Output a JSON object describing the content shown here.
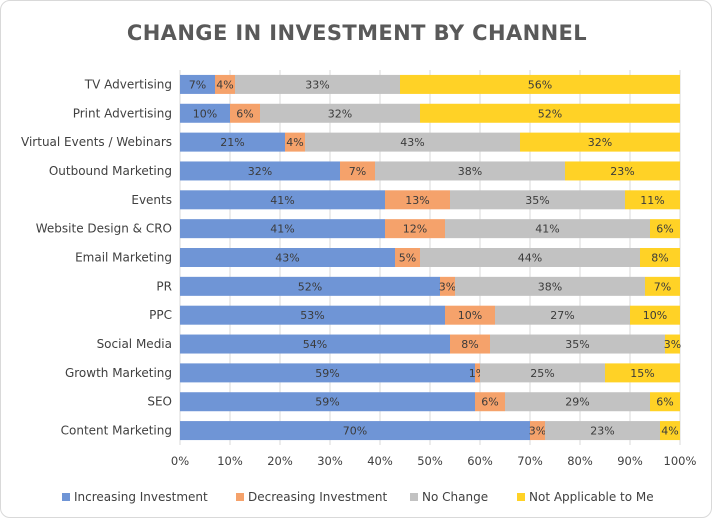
{
  "chart_data": {
    "type": "bar",
    "orientation": "horizontal",
    "stacked": true,
    "title": "CHANGE IN INVESTMENT BY CHANNEL",
    "categories": [
      "TV Advertising",
      "Print Advertising",
      "Virtual Events / Webinars",
      "Outbound Marketing",
      "Events",
      "Website Design & CRO",
      "Email Marketing",
      "PR",
      "PPC",
      "Social Media",
      "Growth Marketing",
      "SEO",
      "Content Marketing"
    ],
    "series": [
      {
        "name": "Increasing Investment",
        "color": "#6f95d6",
        "values": [
          7,
          10,
          21,
          32,
          41,
          41,
          43,
          52,
          53,
          54,
          59,
          59,
          70
        ]
      },
      {
        "name": "Decreasing Investment",
        "color": "#f5a26b",
        "values": [
          4,
          6,
          4,
          7,
          13,
          12,
          5,
          3,
          10,
          8,
          1,
          6,
          3
        ]
      },
      {
        "name": "No Change",
        "color": "#c2c2c2",
        "values": [
          33,
          32,
          43,
          38,
          35,
          41,
          44,
          38,
          27,
          35,
          25,
          29,
          23
        ]
      },
      {
        "name": "Not Applicable to Me",
        "color": "#ffd226",
        "values": [
          56,
          52,
          32,
          23,
          11,
          6,
          8,
          7,
          10,
          3,
          15,
          6,
          4
        ]
      }
    ],
    "xlim": [
      0,
      100
    ],
    "xticks": [
      "0%",
      "10%",
      "20%",
      "30%",
      "40%",
      "50%",
      "60%",
      "70%",
      "80%",
      "90%",
      "100%"
    ],
    "grid": true,
    "legend": "bottom"
  }
}
